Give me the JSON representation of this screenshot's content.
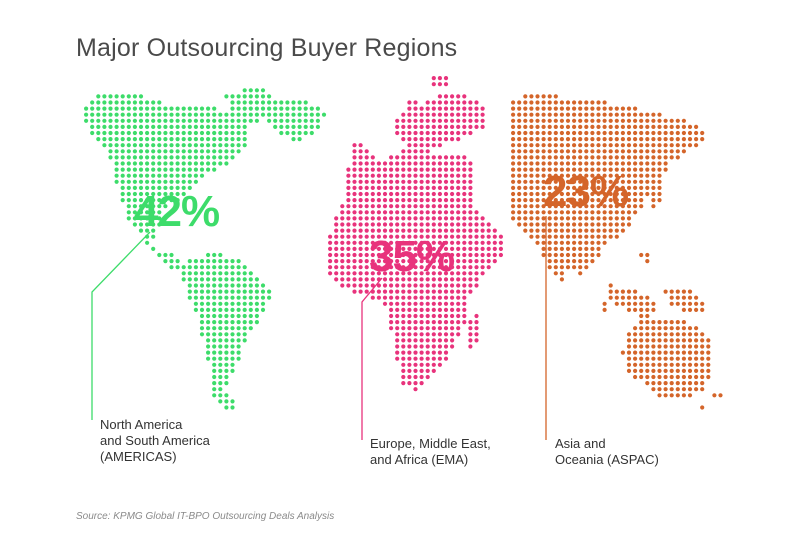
{
  "title": "Major Outsourcing Buyer Regions",
  "regions": [
    {
      "key": "americas",
      "percent": "42%",
      "value": 42,
      "color": "#3ddc6a",
      "label_lines": [
        "North America",
        "and South America",
        "(AMERICAS)"
      ]
    },
    {
      "key": "ema",
      "percent": "35%",
      "value": 35,
      "color": "#e8337c",
      "label_lines": [
        "Europe, Middle East,",
        "and Africa (EMA)"
      ]
    },
    {
      "key": "aspac",
      "percent": "23%",
      "value": 23,
      "color": "#d4652a",
      "label_lines": [
        "Asia and",
        "Oceania (ASPAC)"
      ]
    }
  ],
  "source": "Source: KPMG Global IT-BPO Outsourcing Deals Analysis"
}
